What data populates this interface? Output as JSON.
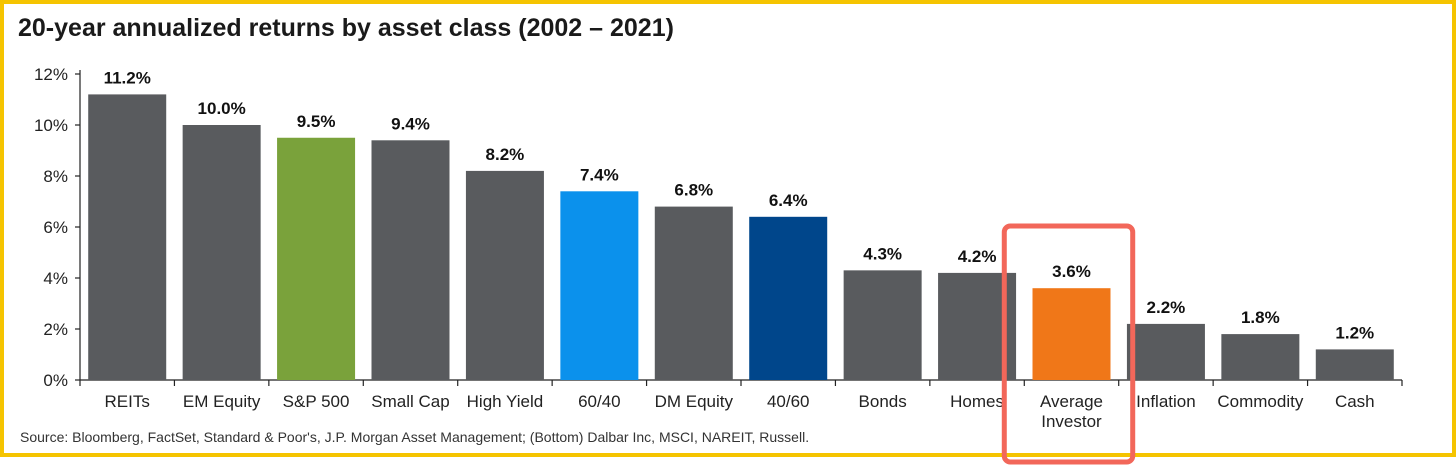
{
  "chart_data": {
    "type": "bar",
    "title": "20-year annualized returns by asset class (2002 – 2021)",
    "source": "Source: Bloomberg, FactSet, Standard & Poor's, J.P. Morgan Asset Management; (Bottom) Dalbar Inc, MSCI, NAREIT, Russell.",
    "categories": [
      "REITs",
      "EM Equity",
      "S&P 500",
      "Small Cap",
      "High Yield",
      "60/40",
      "DM Equity",
      "40/60",
      "Bonds",
      "Homes",
      "Average Investor",
      "Inflation",
      "Commodity",
      "Cash"
    ],
    "values": [
      11.2,
      10.0,
      9.5,
      9.4,
      8.2,
      7.4,
      6.8,
      6.4,
      4.3,
      4.2,
      3.6,
      2.2,
      1.8,
      1.2
    ],
    "value_labels": [
      "11.2%",
      "10.0%",
      "9.5%",
      "9.4%",
      "8.2%",
      "7.4%",
      "6.8%",
      "6.4%",
      "4.3%",
      "4.2%",
      "3.6%",
      "2.2%",
      "1.8%",
      "1.2%"
    ],
    "colors": [
      "#595b5e",
      "#595b5e",
      "#7aa23b",
      "#595b5e",
      "#595b5e",
      "#0b91ec",
      "#595b5e",
      "#00468b",
      "#595b5e",
      "#595b5e",
      "#f07718",
      "#595b5e",
      "#595b5e",
      "#595b5e"
    ],
    "yticks": [
      "0%",
      "2%",
      "4%",
      "6%",
      "8%",
      "10%",
      "12%"
    ],
    "ylim": [
      0,
      12
    ],
    "grid": false,
    "highlight": {
      "category": "Average Investor",
      "color": "#f2675a"
    }
  }
}
